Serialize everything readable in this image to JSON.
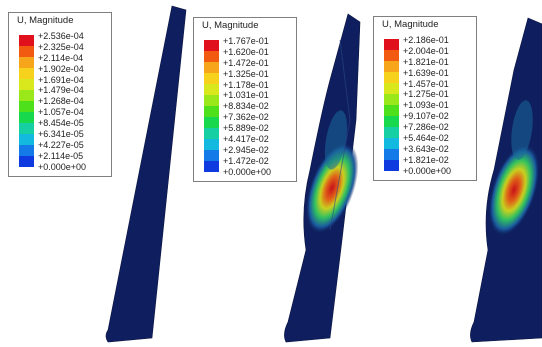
{
  "panels": [
    {
      "legend_title": "U, Magnitude",
      "labels": [
        "+2.536e-04",
        "+2.325e-04",
        "+2.114e-04",
        "+1.902e-04",
        "+1.691e-04",
        "+1.479e-04",
        "+1.268e-04",
        "+1.057e-04",
        "+8.454e-05",
        "+6.341e-05",
        "+4.227e-05",
        "+2.114e-05",
        "+0.000e+00"
      ]
    },
    {
      "legend_title": "U, Magnitude",
      "labels": [
        "+1.767e-01",
        "+1.620e-01",
        "+1.472e-01",
        "+1.325e-01",
        "+1.178e-01",
        "+1.031e-01",
        "+8.834e-02",
        "+7.362e-02",
        "+5.889e-02",
        "+4.417e-02",
        "+2.945e-02",
        "+1.472e-02",
        "+0.000e+00"
      ]
    },
    {
      "legend_title": "U, Magnitude",
      "labels": [
        "+2.186e-01",
        "+2.004e-01",
        "+1.821e-01",
        "+1.639e-01",
        "+1.457e-01",
        "+1.275e-01",
        "+1.093e-01",
        "+9.107e-02",
        "+7.286e-02",
        "+5.464e-02",
        "+3.643e-02",
        "+1.821e-02",
        "+0.000e+00"
      ]
    }
  ],
  "colors": {
    "scale": [
      "#e0101c",
      "#f25a12",
      "#f7a51a",
      "#f6d21c",
      "#d8e81c",
      "#9be81a",
      "#4ee01a",
      "#18d84e",
      "#16cfa2",
      "#14b9e0",
      "#137ae8",
      "#0f3ae0"
    ],
    "mesh": "#0d1f5a"
  }
}
